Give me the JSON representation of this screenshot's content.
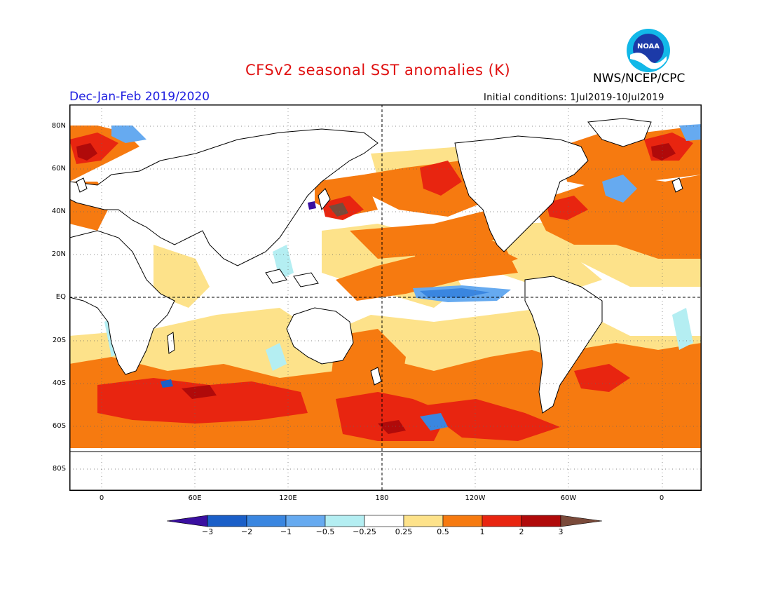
{
  "header": {
    "title": "CFSv2 seasonal SST anomalies (K)",
    "season": "Dec-Jan-Feb 2019/2020",
    "agency": "NWS/NCEP/CPC",
    "initial_conditions": "Initial conditions: 1Jul2019-10Jul2019",
    "logo_text": "NOAA"
  },
  "map": {
    "projection": "equirectangular",
    "land_color": "#ffffff",
    "gridlines": "dotted",
    "reference_lines": [
      "EQ",
      "180"
    ],
    "lat_labels": [
      "80N",
      "60N",
      "40N",
      "20N",
      "EQ",
      "20S",
      "40S",
      "60S",
      "80S"
    ],
    "lon_labels": [
      "0",
      "60E",
      "120E",
      "180",
      "120W",
      "60W",
      "0"
    ]
  },
  "colorbar": {
    "labels": [
      "-3",
      "-2",
      "-1",
      "-0.5",
      "-0.25",
      "0.25",
      "0.5",
      "1",
      "2",
      "3"
    ],
    "colors": [
      "#3a0fa0",
      "#1a5fc8",
      "#3a86e0",
      "#66aaf0",
      "#b4eef2",
      "#ffffff",
      "#fde28a",
      "#f67a10",
      "#e82510",
      "#b00a0a",
      "#7a4a3a"
    ]
  },
  "anomaly_regions": [
    {
      "area": "Central/eastern equatorial Pacific",
      "class": "+0.5 to +1"
    },
    {
      "area": "Eastern equatorial Pacific cold tongue",
      "class": "-0.5 to -1"
    },
    {
      "area": "Northeast Pacific",
      "class": "+1 to +2"
    },
    {
      "area": "Southern Ocean",
      "class": "+1 to +2"
    },
    {
      "area": "Gulf Stream / North Atlantic",
      "class": "+1 to +2"
    },
    {
      "area": "Subpolar North Atlantic",
      "class": "-0.5 to -1"
    }
  ]
}
